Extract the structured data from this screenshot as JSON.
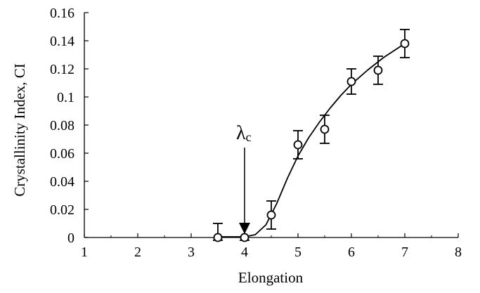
{
  "chart_data": {
    "type": "scatter",
    "title": "",
    "xlabel": "Elongation",
    "ylabel": "Crystallinity Index, CI",
    "xlim": [
      1,
      8
    ],
    "ylim": [
      0,
      0.16
    ],
    "x_ticks": [
      1,
      2,
      3,
      4,
      5,
      6,
      7,
      8
    ],
    "x_tick_labels": [
      "1",
      "2",
      "3",
      "4",
      "5",
      "6",
      "7",
      "8"
    ],
    "y_ticks": [
      0,
      0.02,
      0.04,
      0.06,
      0.08,
      0.1,
      0.12,
      0.14,
      0.16
    ],
    "y_tick_labels": [
      "0",
      "0.02",
      "0.04",
      "0.06",
      "0.08",
      "0.1",
      "0.12",
      "0.14",
      "0.16"
    ],
    "grid": false,
    "legend": "none",
    "series": [
      {
        "marker": "open-circle",
        "x": [
          3.5,
          4.0,
          4.5,
          5.0,
          5.5,
          6.0,
          6.5,
          7.0
        ],
        "y": [
          0.0,
          0.0,
          0.016,
          0.066,
          0.077,
          0.111,
          0.119,
          0.138
        ],
        "error": [
          0.01,
          0.01,
          0.01,
          0.01,
          0.01,
          0.009,
          0.01,
          0.01
        ]
      }
    ],
    "fit_curve": {
      "x": [
        3.5,
        4.0,
        4.2,
        4.4,
        4.6,
        4.8,
        5.0,
        5.2,
        5.4,
        5.6,
        5.8,
        6.0,
        6.3,
        6.6,
        7.0
      ],
      "y": [
        0.0005,
        0.0005,
        0.002,
        0.009,
        0.024,
        0.042,
        0.058,
        0.071,
        0.082,
        0.092,
        0.101,
        0.109,
        0.119,
        0.128,
        0.138
      ]
    },
    "annotation": {
      "symbol": "λ",
      "subscript": "c",
      "arrow_x": 4.0,
      "arrow_tip_y": 0.0025,
      "arrow_tail_y": 0.064
    },
    "colors": {
      "line": "#000000",
      "background": "#ffffff"
    }
  }
}
